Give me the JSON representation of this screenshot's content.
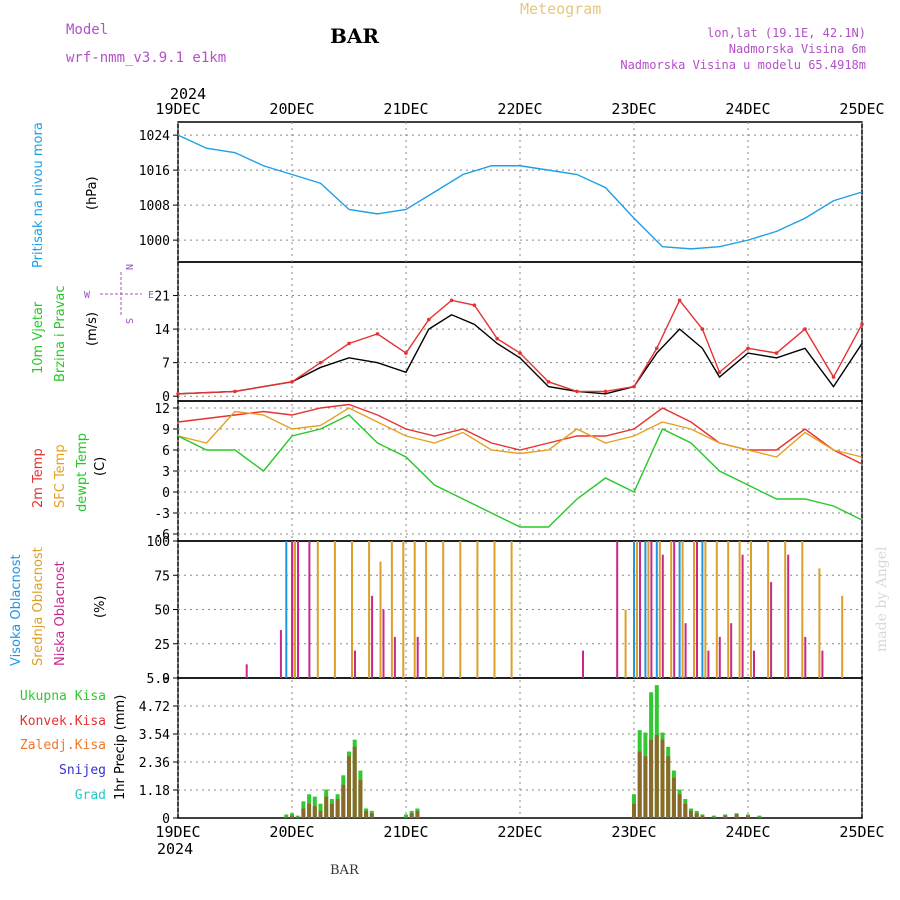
{
  "header": {
    "model_label": "Model",
    "model_name": "wrf-nmm_v3.9.1 e1km",
    "station": "BAR",
    "title": "Meteogram",
    "coords": "lon,lat (19.1E, 42.1N)",
    "elevation": "Nadmorska Visina 6m",
    "model_elevation": "Nadmorska Visina u modelu 65.4918m",
    "year_top": "2024",
    "year_bottom": "2024",
    "footer_station": "BAR",
    "watermark": "made by Angel"
  },
  "colors": {
    "pressure": "#1ea0e6",
    "temp2m": "#e63232",
    "sfc": "#e6a020",
    "dewpt": "#28c828",
    "total_precip": "#32c832",
    "conv_precip": "#e63232",
    "frozen_precip": "#f07828",
    "snow": "#3232d2",
    "hail": "#28c8c8",
    "cloud_high": "#1e96e6",
    "cloud_mid": "#dca028",
    "cloud_low": "#c8288c",
    "wind_axis": "#a050c8",
    "label_purple": "#b450c8",
    "title_orange": "#e6c878"
  },
  "x_axis": {
    "ticks": [
      "19DEC",
      "20DEC",
      "21DEC",
      "22DEC",
      "23DEC",
      "24DEC",
      "25DEC"
    ]
  },
  "panels": {
    "pressure": {
      "label": "Pritisak na nivou mora",
      "unit": "(hPa)"
    },
    "wind": {
      "label1": "10m Vjetar",
      "label2": "Brzina i Pravac",
      "unit": "(m/s)",
      "compass_w": "W",
      "compass_e": "E",
      "compass_n": "N",
      "compass_s": "S"
    },
    "temp": {
      "label1": "2m Temp",
      "label2": "SFC Temp",
      "label3": "dewpt Temp",
      "unit": "(C)"
    },
    "cloud": {
      "label1": "Visoka Oblacnost",
      "label2": "Srednja Oblacnost",
      "label3": "Niska Oblacnost",
      "unit": "(%)"
    },
    "precip": {
      "unit": "1hr Precip (mm)",
      "legend": [
        "Ukupna Kisa",
        "Konvek.Kisa",
        "Zaledj.Kisa",
        "Snijeg",
        "Grad"
      ]
    }
  },
  "chart_data": [
    {
      "type": "line",
      "panel": "pressure",
      "ylabel": "(hPa)",
      "ylim": [
        995,
        1027
      ],
      "yticks": [
        "1000",
        "1008",
        "1016",
        "1024"
      ],
      "x_days": [
        0,
        0.25,
        0.5,
        0.75,
        1.0,
        1.25,
        1.5,
        1.75,
        2.0,
        2.25,
        2.5,
        2.75,
        3.0,
        3.25,
        3.5,
        3.75,
        4.0,
        4.25,
        4.5,
        4.75,
        5.0,
        5.25,
        5.5,
        5.75,
        6.0
      ],
      "series": [
        {
          "values": [
            1024,
            1021,
            1020,
            1017,
            1015,
            1013,
            1007,
            1006,
            1007,
            1011,
            1015,
            1017,
            1017,
            1016,
            1015,
            1012,
            1005,
            998.5,
            998,
            998.5,
            1000,
            1002,
            1005,
            1009,
            1011
          ]
        }
      ],
      "grid": true
    },
    {
      "type": "line",
      "panel": "wind",
      "ylabel": "(m/s)",
      "ylim": [
        -1,
        28
      ],
      "yticks": [
        "0",
        "7",
        "14",
        "21"
      ],
      "x_days": [
        0,
        0.5,
        1.0,
        1.25,
        1.5,
        1.75,
        2.0,
        2.2,
        2.4,
        2.6,
        2.8,
        3.0,
        3.25,
        3.5,
        3.75,
        4.0,
        4.2,
        4.4,
        4.6,
        4.75,
        5.0,
        5.25,
        5.5,
        5.75,
        6.0
      ],
      "series": [
        {
          "values": [
            0.5,
            1,
            3,
            6,
            8,
            7,
            5,
            14,
            17,
            15,
            11,
            8,
            2,
            1,
            0.5,
            2,
            9,
            14,
            10,
            4,
            9,
            8,
            10,
            2,
            11
          ]
        },
        {
          "values": [
            0.5,
            1,
            3,
            7,
            11,
            13,
            9,
            16,
            20,
            19,
            12,
            9,
            3,
            1,
            1,
            2,
            10,
            20,
            14,
            5,
            10,
            9,
            14,
            4,
            15
          ]
        }
      ],
      "grid": true
    },
    {
      "type": "line",
      "panel": "temp",
      "ylabel": "(C)",
      "ylim": [
        -7,
        13
      ],
      "yticks": [
        "-6",
        "-3",
        "0",
        "3",
        "6",
        "9",
        "12"
      ],
      "x_days": [
        0,
        0.25,
        0.5,
        0.75,
        1.0,
        1.25,
        1.5,
        1.75,
        2.0,
        2.25,
        2.5,
        2.75,
        3.0,
        3.25,
        3.5,
        3.75,
        4.0,
        4.25,
        4.5,
        4.75,
        5.0,
        5.25,
        5.5,
        5.75,
        6.0
      ],
      "series": [
        {
          "name": "2m Temp",
          "values": [
            10,
            10.5,
            11,
            11.5,
            11,
            12,
            12.5,
            11,
            9,
            8,
            9,
            7,
            6,
            7,
            8,
            8,
            9,
            12,
            10,
            7,
            6,
            6,
            9,
            6,
            4
          ]
        },
        {
          "name": "SFC Temp",
          "values": [
            8,
            7,
            11.5,
            11,
            9,
            9.5,
            12,
            10,
            8,
            7,
            8.5,
            6,
            5.5,
            6,
            9,
            7,
            8,
            10,
            9,
            7,
            6,
            5,
            8.5,
            6,
            5
          ]
        },
        {
          "name": "dewpt Temp",
          "values": [
            8,
            6,
            6,
            3,
            8,
            9,
            11,
            7,
            5,
            1,
            -1,
            -3,
            -5,
            -5,
            -1,
            2,
            0,
            9,
            7,
            3,
            1,
            -1,
            -1,
            -2,
            -4
          ]
        }
      ],
      "grid": true
    },
    {
      "type": "bar",
      "panel": "cloud",
      "ylabel": "(%)",
      "ylim": [
        0,
        100
      ],
      "yticks": [
        "0",
        "25",
        "50",
        "75",
        "100"
      ],
      "x_days": [
        0.55,
        0.85,
        0.95,
        1.0,
        1.1,
        1.2,
        1.35,
        1.5,
        1.65,
        1.75,
        1.85,
        1.95,
        2.05,
        2.15,
        2.3,
        2.45,
        2.6,
        2.75,
        2.9,
        3.5,
        3.8,
        3.9,
        4.0,
        4.1,
        4.2,
        4.3,
        4.4,
        4.5,
        4.6,
        4.7,
        4.8,
        4.9,
        5.0,
        5.15,
        5.3,
        5.45,
        5.6,
        5.8
      ],
      "series": [
        {
          "name": "Visoka Oblacnost",
          "values": [
            0,
            0,
            100,
            100,
            0,
            0,
            0,
            0,
            0,
            0,
            0,
            0,
            0,
            0,
            0,
            0,
            0,
            0,
            0,
            0,
            0,
            0,
            100,
            100,
            100,
            0,
            100,
            0,
            100,
            0,
            0,
            0,
            0,
            0,
            0,
            0,
            0,
            0
          ]
        },
        {
          "name": "Srednja Oblacnost",
          "values": [
            0,
            0,
            0,
            100,
            0,
            100,
            100,
            100,
            100,
            85,
            100,
            100,
            100,
            100,
            100,
            100,
            100,
            100,
            100,
            0,
            0,
            50,
            100,
            100,
            100,
            100,
            100,
            100,
            100,
            100,
            100,
            100,
            100,
            100,
            100,
            100,
            80,
            60
          ]
        },
        {
          "name": "Niska Oblacnost",
          "values": [
            10,
            35,
            100,
            100,
            100,
            0,
            0,
            20,
            60,
            50,
            30,
            0,
            30,
            0,
            0,
            0,
            0,
            0,
            0,
            20,
            100,
            0,
            100,
            100,
            90,
            100,
            40,
            100,
            20,
            30,
            40,
            90,
            20,
            70,
            90,
            30,
            20,
            0
          ]
        }
      ],
      "grid": true
    },
    {
      "type": "bar",
      "panel": "precip",
      "ylabel": "1hr Precip (mm)",
      "ylim": [
        0,
        5.9
      ],
      "yticks": [
        "0",
        "1.18",
        "2.36",
        "3.54",
        "4.72",
        "5.9"
      ],
      "x_days": [
        0.95,
        1.0,
        1.05,
        1.1,
        1.15,
        1.2,
        1.25,
        1.3,
        1.35,
        1.4,
        1.45,
        1.5,
        1.55,
        1.6,
        1.65,
        1.7,
        2.0,
        2.05,
        2.1,
        4.0,
        4.05,
        4.1,
        4.15,
        4.2,
        4.25,
        4.3,
        4.35,
        4.4,
        4.45,
        4.5,
        4.55,
        4.6,
        4.7,
        4.8,
        4.9,
        5.0,
        5.1
      ],
      "series": [
        {
          "name": "Ukupna Kisa",
          "values": [
            0.15,
            0.2,
            0.1,
            0.7,
            1.0,
            0.9,
            0.6,
            1.2,
            0.8,
            1.0,
            1.8,
            2.8,
            3.3,
            2.0,
            0.4,
            0.3,
            0.15,
            0.3,
            0.4,
            1.0,
            3.7,
            3.6,
            5.3,
            5.6,
            3.6,
            3.0,
            2.0,
            1.2,
            0.8,
            0.4,
            0.3,
            0.15,
            0.1,
            0.15,
            0.2,
            0.15,
            0.1
          ]
        },
        {
          "name": "Konvek.Kisa",
          "values": [
            0.05,
            0.1,
            0.05,
            0.4,
            0.6,
            0.5,
            0.3,
            0.9,
            0.6,
            0.8,
            1.4,
            2.6,
            3.0,
            1.6,
            0.3,
            0.2,
            0.05,
            0.2,
            0.3,
            0.6,
            2.8,
            2.6,
            3.3,
            3.5,
            3.3,
            2.6,
            1.7,
            1.0,
            0.6,
            0.3,
            0.2,
            0.1,
            0.05,
            0.1,
            0.15,
            0.1,
            0.05
          ]
        }
      ],
      "grid": true
    }
  ]
}
